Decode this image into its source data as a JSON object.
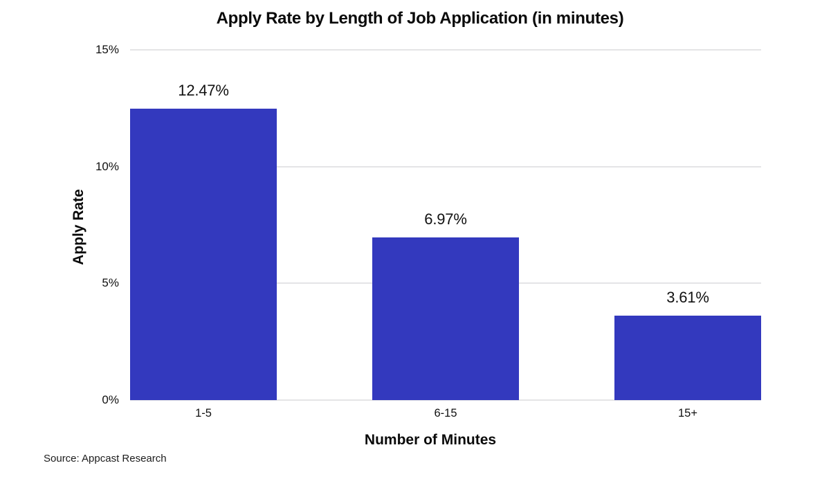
{
  "chart_data": {
    "type": "bar",
    "title": "Apply Rate by Length of Job Application (in minutes)",
    "categories": [
      "1-5",
      "6-15",
      "15+"
    ],
    "values": [
      12.47,
      6.97,
      3.61
    ],
    "value_labels": [
      "12.47%",
      "6.97%",
      "3.61%"
    ],
    "xlabel": "Number of Minutes",
    "ylabel": "Apply Rate",
    "ylim": [
      0,
      15
    ],
    "yticks": [
      0,
      5,
      10,
      15
    ],
    "ytick_labels": [
      "0%",
      "5%",
      "10%",
      "15%"
    ],
    "grid": true,
    "legend": "none",
    "bar_color": "#3339BE",
    "gridline_color": "#e4e4e6"
  },
  "source_note": "Source: Appcast Research"
}
